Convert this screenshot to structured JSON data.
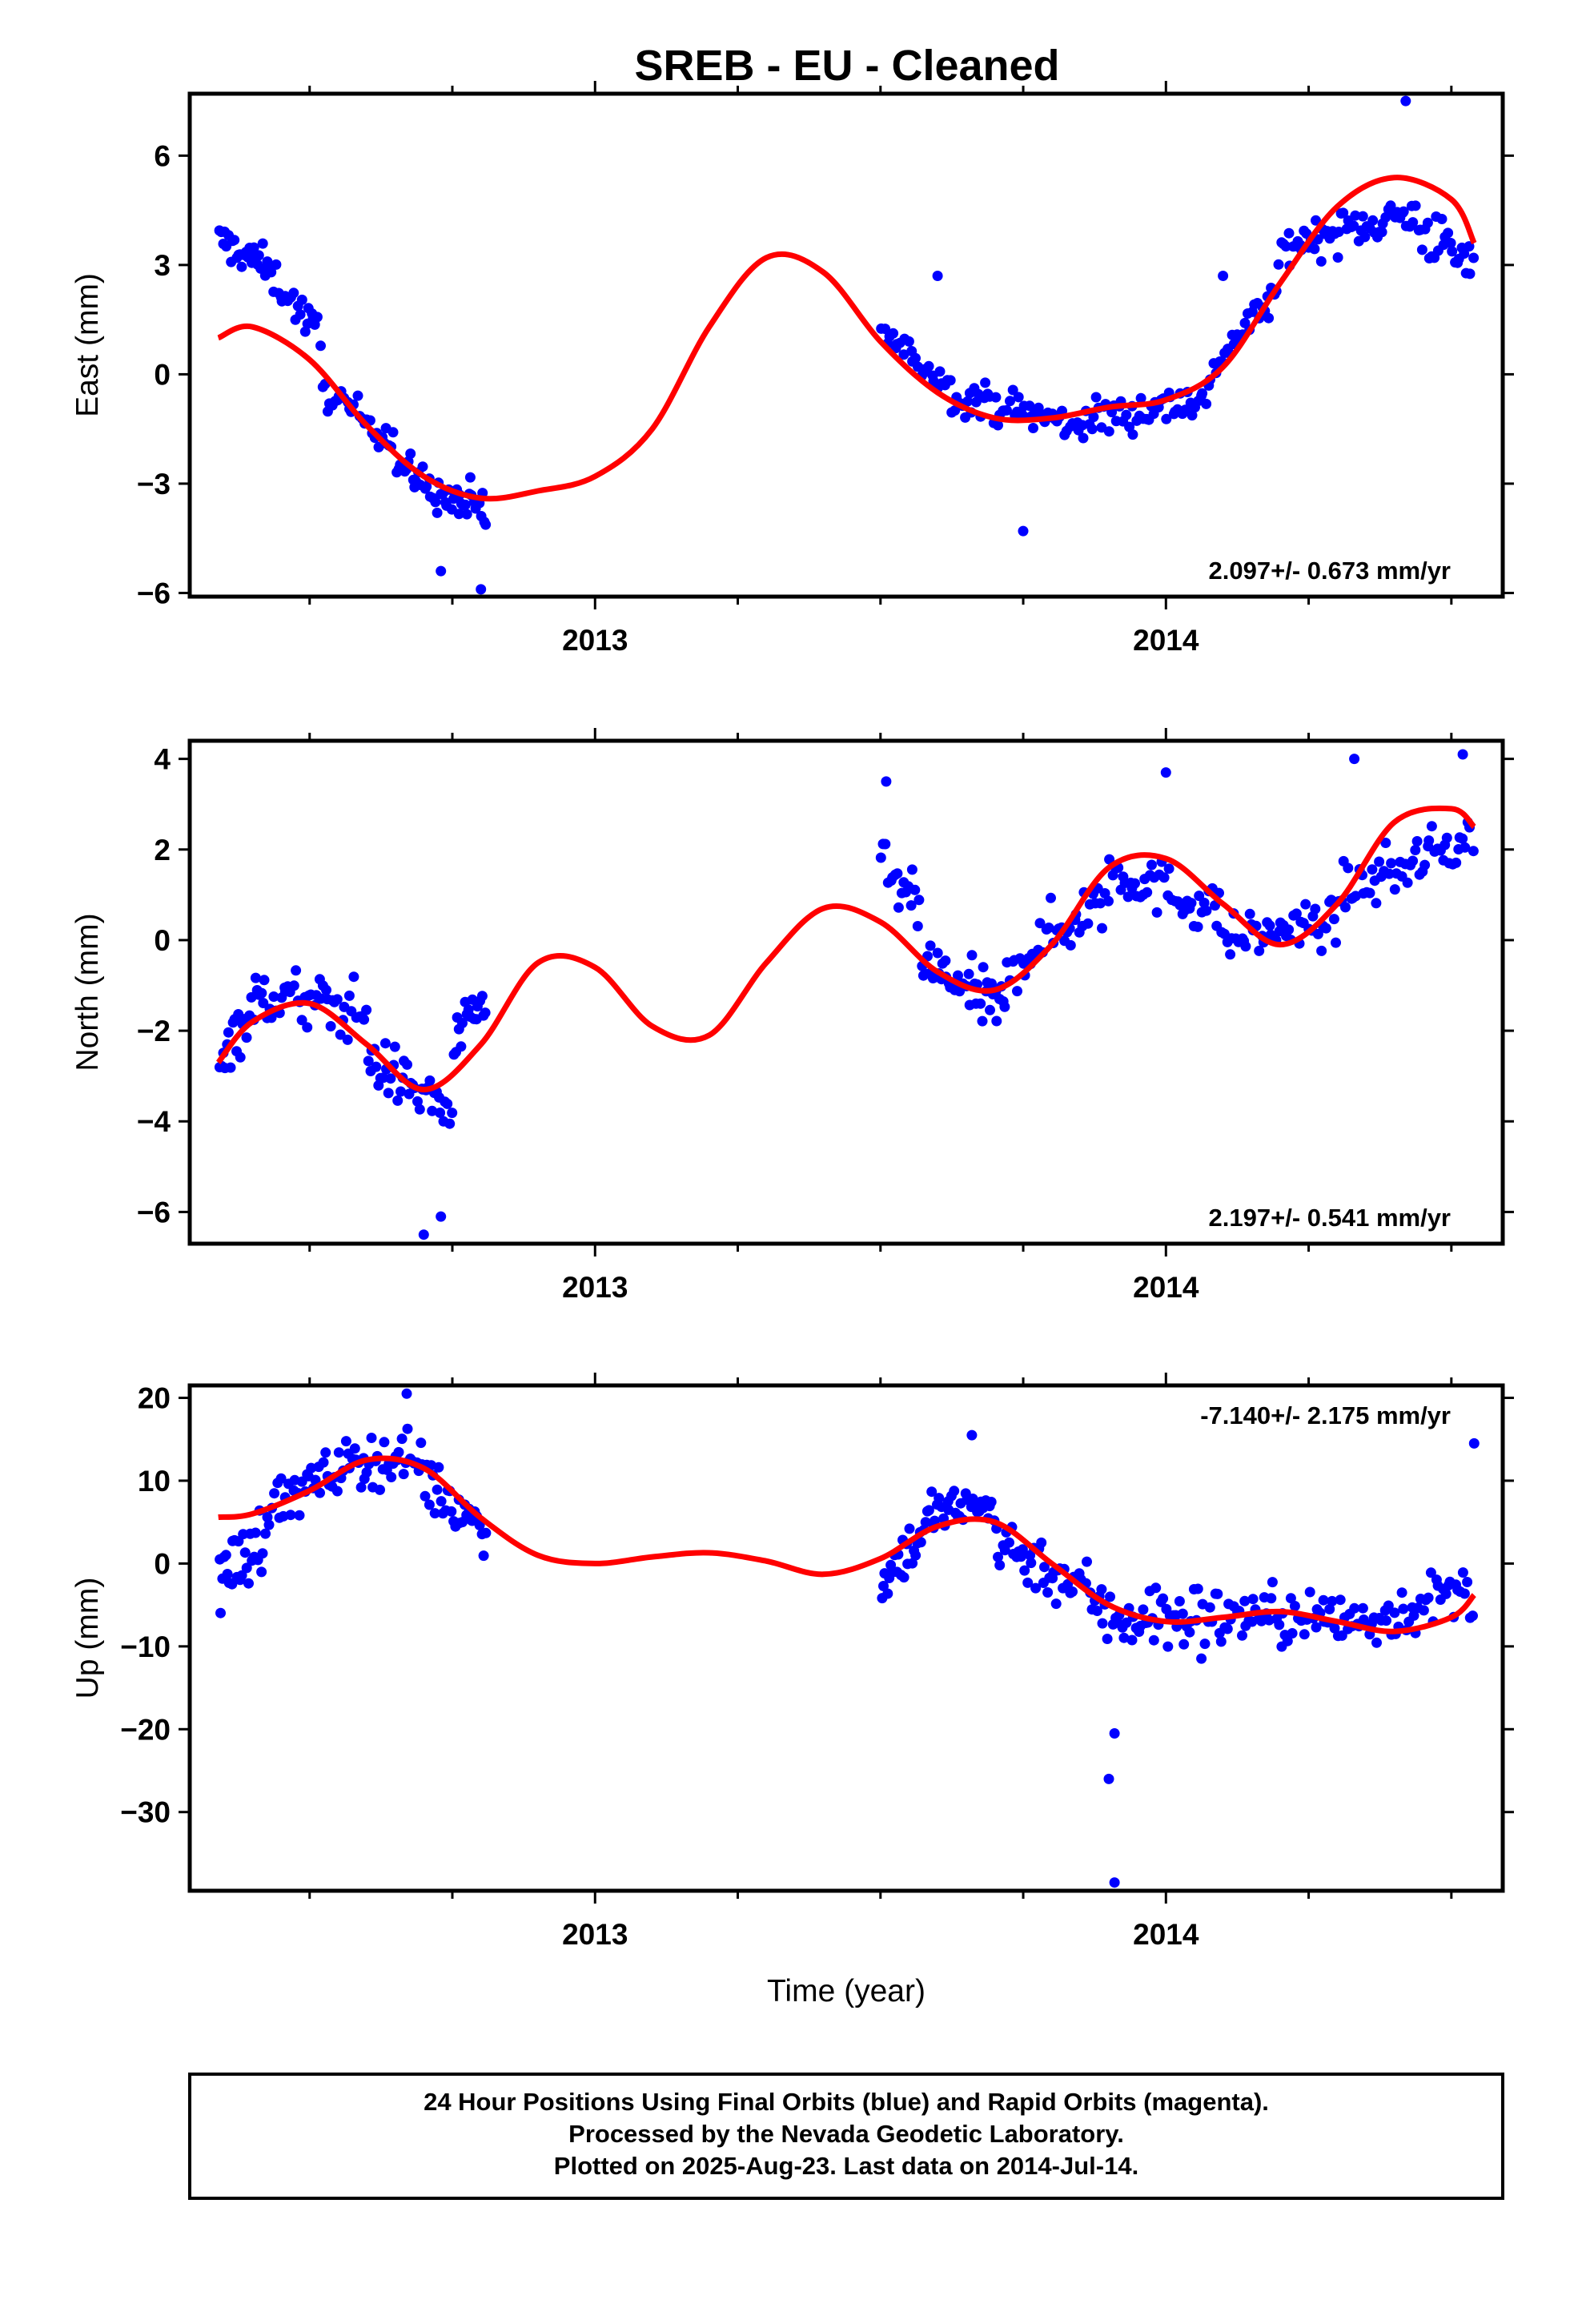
{
  "title": "SREB  - EU - Cleaned",
  "colors": {
    "final": "#0000ff",
    "model": "#ff0000",
    "frame": "#000000"
  },
  "chart_data": [
    {
      "type": "scatter",
      "ylabel": "East (mm)",
      "xlabel": "",
      "rate": "2.097+/- 0.673 mm/yr",
      "xlim": [
        2012.29,
        2014.59
      ],
      "ylim": [
        -6.1,
        7.7
      ],
      "yticks": [
        -6,
        -3,
        0,
        3,
        6
      ],
      "yticklabels": [
        "−6",
        "−3",
        "0",
        "3",
        "6"
      ],
      "xticks": [
        2013,
        2014
      ],
      "xticklabels": [
        "2013",
        "2014"
      ],
      "gaps": [
        [
          2012.81,
          2013.5
        ]
      ],
      "model": [
        [
          2012.34,
          1.0
        ],
        [
          2012.4,
          1.3
        ],
        [
          2012.5,
          0.4
        ],
        [
          2012.6,
          -1.4
        ],
        [
          2012.7,
          -2.8
        ],
        [
          2012.8,
          -3.4
        ],
        [
          2012.9,
          -3.2
        ],
        [
          2013.0,
          -2.8
        ],
        [
          2013.1,
          -1.5
        ],
        [
          2013.2,
          1.3
        ],
        [
          2013.3,
          3.2
        ],
        [
          2013.4,
          2.8
        ],
        [
          2013.5,
          0.9
        ],
        [
          2013.6,
          -0.5
        ],
        [
          2013.7,
          -1.2
        ],
        [
          2013.8,
          -1.2
        ],
        [
          2013.9,
          -0.9
        ],
        [
          2014.0,
          -0.7
        ],
        [
          2014.1,
          0.2
        ],
        [
          2014.2,
          2.5
        ],
        [
          2014.3,
          4.6
        ],
        [
          2014.4,
          5.4
        ],
        [
          2014.5,
          4.8
        ],
        [
          2014.54,
          3.6
        ]
      ],
      "segments": [
        {
          "x0": 2012.34,
          "x1": 2012.42,
          "a": [
            3.7,
            3.0
          ],
          "spread": 0.9,
          "n": 24
        },
        {
          "x0": 2012.42,
          "x1": 2012.52,
          "a": [
            3.0,
            1.0
          ],
          "spread": 0.9,
          "n": 26
        },
        {
          "x0": 2012.52,
          "x1": 2012.65,
          "a": [
            -0.4,
            -1.8
          ],
          "spread": 0.8,
          "n": 30
        },
        {
          "x0": 2012.65,
          "x1": 2012.75,
          "a": [
            -2.4,
            -3.6
          ],
          "spread": 0.9,
          "n": 28
        },
        {
          "x0": 2012.75,
          "x1": 2012.81,
          "a": [
            -3.4,
            -3.8
          ],
          "spread": 1.2,
          "n": 20
        },
        {
          "x0": 2013.5,
          "x1": 2013.62,
          "a": [
            1.2,
            -0.3
          ],
          "spread": 0.7,
          "n": 26
        },
        {
          "x0": 2013.62,
          "x1": 2013.82,
          "a": [
            -0.5,
            -1.3
          ],
          "spread": 0.9,
          "n": 48
        },
        {
          "x0": 2013.82,
          "x1": 2014.08,
          "a": [
            -1.4,
            -0.6
          ],
          "spread": 1.0,
          "n": 60
        },
        {
          "x0": 2014.08,
          "x1": 2014.2,
          "a": [
            0.2,
            2.4
          ],
          "spread": 0.9,
          "n": 28
        },
        {
          "x0": 2014.2,
          "x1": 2014.42,
          "a": [
            3.5,
            4.4
          ],
          "spread": 1.0,
          "n": 54
        },
        {
          "x0": 2014.42,
          "x1": 2014.54,
          "a": [
            4.4,
            2.8
          ],
          "spread": 1.4,
          "n": 30
        }
      ],
      "outliers": [
        [
          2012.8,
          -5.9
        ],
        [
          2012.73,
          -5.4
        ],
        [
          2014.42,
          7.5
        ],
        [
          2013.75,
          -4.3
        ],
        [
          2013.6,
          2.7
        ],
        [
          2014.1,
          2.7
        ]
      ]
    },
    {
      "type": "scatter",
      "ylabel": "North (mm)",
      "xlabel": "",
      "rate": "2.197+/- 0.541 mm/yr",
      "xlim": [
        2012.29,
        2014.59
      ],
      "ylim": [
        -6.7,
        4.4
      ],
      "yticks": [
        -6,
        -4,
        -2,
        0,
        2,
        4
      ],
      "yticklabels": [
        "−6",
        "−4",
        "−2",
        "0",
        "2",
        "4"
      ],
      "xticks": [
        2013,
        2014
      ],
      "xticklabels": [
        "2013",
        "2014"
      ],
      "gaps": [
        [
          2012.81,
          2013.5
        ]
      ],
      "model": [
        [
          2012.34,
          -2.7
        ],
        [
          2012.4,
          -1.8
        ],
        [
          2012.5,
          -1.4
        ],
        [
          2012.6,
          -2.3
        ],
        [
          2012.7,
          -3.3
        ],
        [
          2012.8,
          -2.3
        ],
        [
          2012.9,
          -0.5
        ],
        [
          2013.0,
          -0.6
        ],
        [
          2013.1,
          -1.9
        ],
        [
          2013.2,
          -2.1
        ],
        [
          2013.3,
          -0.5
        ],
        [
          2013.4,
          0.7
        ],
        [
          2013.5,
          0.4
        ],
        [
          2013.6,
          -0.7
        ],
        [
          2013.7,
          -1.1
        ],
        [
          2013.8,
          -0.1
        ],
        [
          2013.9,
          1.6
        ],
        [
          2014.0,
          1.8
        ],
        [
          2014.1,
          0.8
        ],
        [
          2014.2,
          -0.1
        ],
        [
          2014.3,
          0.8
        ],
        [
          2014.4,
          2.6
        ],
        [
          2014.5,
          2.9
        ],
        [
          2014.54,
          2.5
        ]
      ],
      "segments": [
        {
          "x0": 2012.34,
          "x1": 2012.42,
          "a": [
            -2.5,
            -1.2
          ],
          "spread": 1.2,
          "n": 24
        },
        {
          "x0": 2012.42,
          "x1": 2012.6,
          "a": [
            -1.2,
            -1.6
          ],
          "spread": 1.2,
          "n": 44
        },
        {
          "x0": 2012.6,
          "x1": 2012.75,
          "a": [
            -2.6,
            -3.8
          ],
          "spread": 1.1,
          "n": 40
        },
        {
          "x0": 2012.75,
          "x1": 2012.81,
          "a": [
            -2.4,
            -1.2
          ],
          "spread": 0.9,
          "n": 18
        },
        {
          "x0": 2013.5,
          "x1": 2013.57,
          "a": [
            1.6,
            0.6
          ],
          "spread": 1.1,
          "n": 18
        },
        {
          "x0": 2013.57,
          "x1": 2013.72,
          "a": [
            -0.5,
            -1.6
          ],
          "spread": 1.2,
          "n": 44
        },
        {
          "x0": 2013.72,
          "x1": 2013.9,
          "a": [
            -0.6,
            1.0
          ],
          "spread": 1.2,
          "n": 40
        },
        {
          "x0": 2013.9,
          "x1": 2014.1,
          "a": [
            1.6,
            0.6
          ],
          "spread": 1.1,
          "n": 46
        },
        {
          "x0": 2014.1,
          "x1": 2014.3,
          "a": [
            0.0,
            0.4
          ],
          "spread": 0.9,
          "n": 46
        },
        {
          "x0": 2014.3,
          "x1": 2014.54,
          "a": [
            1.0,
            2.3
          ],
          "spread": 1.0,
          "n": 54
        }
      ],
      "outliers": [
        [
          2012.7,
          -6.5
        ],
        [
          2012.73,
          -6.1
        ],
        [
          2013.51,
          3.5
        ],
        [
          2014.33,
          4.0
        ],
        [
          2014.52,
          4.1
        ],
        [
          2014.0,
          3.7
        ]
      ]
    },
    {
      "type": "scatter",
      "ylabel": "Up (mm)",
      "xlabel": "Time (year)",
      "rate": "-7.140+/- 2.175 mm/yr",
      "xlim": [
        2012.29,
        2014.59
      ],
      "ylim": [
        -39.5,
        21.5
      ],
      "yticks": [
        -30,
        -20,
        -10,
        0,
        10,
        20
      ],
      "yticklabels": [
        "−30",
        "−20",
        "−10",
        "0",
        "10",
        "20"
      ],
      "xticks": [
        2013,
        2014
      ],
      "xticklabels": [
        "2013",
        "2014"
      ],
      "gaps": [
        [
          2012.81,
          2013.5
        ]
      ],
      "model": [
        [
          2012.34,
          5.6
        ],
        [
          2012.4,
          6.0
        ],
        [
          2012.5,
          8.8
        ],
        [
          2012.6,
          12.5
        ],
        [
          2012.7,
          11.5
        ],
        [
          2012.8,
          5.5
        ],
        [
          2012.9,
          1.0
        ],
        [
          2013.0,
          0.0
        ],
        [
          2013.1,
          0.8
        ],
        [
          2013.2,
          1.3
        ],
        [
          2013.3,
          0.3
        ],
        [
          2013.4,
          -1.3
        ],
        [
          2013.5,
          0.6
        ],
        [
          2013.6,
          4.5
        ],
        [
          2013.7,
          5.0
        ],
        [
          2013.8,
          0.0
        ],
        [
          2013.9,
          -5.0
        ],
        [
          2014.0,
          -7.0
        ],
        [
          2014.1,
          -6.5
        ],
        [
          2014.2,
          -5.8
        ],
        [
          2014.3,
          -7.0
        ],
        [
          2014.4,
          -8.2
        ],
        [
          2014.5,
          -6.5
        ],
        [
          2014.54,
          -3.8
        ]
      ],
      "segments": [
        {
          "x0": 2012.34,
          "x1": 2012.42,
          "a": [
            -2.0,
            3.0
          ],
          "spread": 8.0,
          "n": 26
        },
        {
          "x0": 2012.42,
          "x1": 2012.55,
          "a": [
            6.5,
            11.0
          ],
          "spread": 5.5,
          "n": 32
        },
        {
          "x0": 2012.55,
          "x1": 2012.7,
          "a": [
            12.0,
            13.0
          ],
          "spread": 5.5,
          "n": 40
        },
        {
          "x0": 2012.7,
          "x1": 2012.81,
          "a": [
            10.0,
            4.0
          ],
          "spread": 6.0,
          "n": 30
        },
        {
          "x0": 2013.5,
          "x1": 2013.58,
          "a": [
            -2.0,
            4.0
          ],
          "spread": 6.0,
          "n": 24
        },
        {
          "x0": 2013.58,
          "x1": 2013.7,
          "a": [
            6.0,
            7.0
          ],
          "spread": 5.5,
          "n": 34
        },
        {
          "x0": 2013.7,
          "x1": 2013.88,
          "a": [
            3.0,
            -4.0
          ],
          "spread": 6.5,
          "n": 46
        },
        {
          "x0": 2013.88,
          "x1": 2014.1,
          "a": [
            -6.0,
            -7.0
          ],
          "spread": 8.0,
          "n": 54
        },
        {
          "x0": 2014.1,
          "x1": 2014.35,
          "a": [
            -6.0,
            -7.0
          ],
          "spread": 6.5,
          "n": 58
        },
        {
          "x0": 2014.35,
          "x1": 2014.54,
          "a": [
            -7.0,
            -3.0
          ],
          "spread": 6.0,
          "n": 44
        }
      ],
      "outliers": [
        [
          2013.9,
          -26.0
        ],
        [
          2013.91,
          -20.5
        ],
        [
          2013.91,
          -38.5
        ],
        [
          2014.54,
          14.5
        ],
        [
          2012.67,
          20.5
        ],
        [
          2013.66,
          15.5
        ]
      ]
    }
  ],
  "footer": {
    "lines": [
      "24 Hour Positions Using Final Orbits (blue) and Rapid Orbits (magenta).",
      "Processed by the Nevada Geodetic Laboratory.",
      "Plotted on 2025-Aug-23. Last data on 2014-Jul-14."
    ]
  }
}
